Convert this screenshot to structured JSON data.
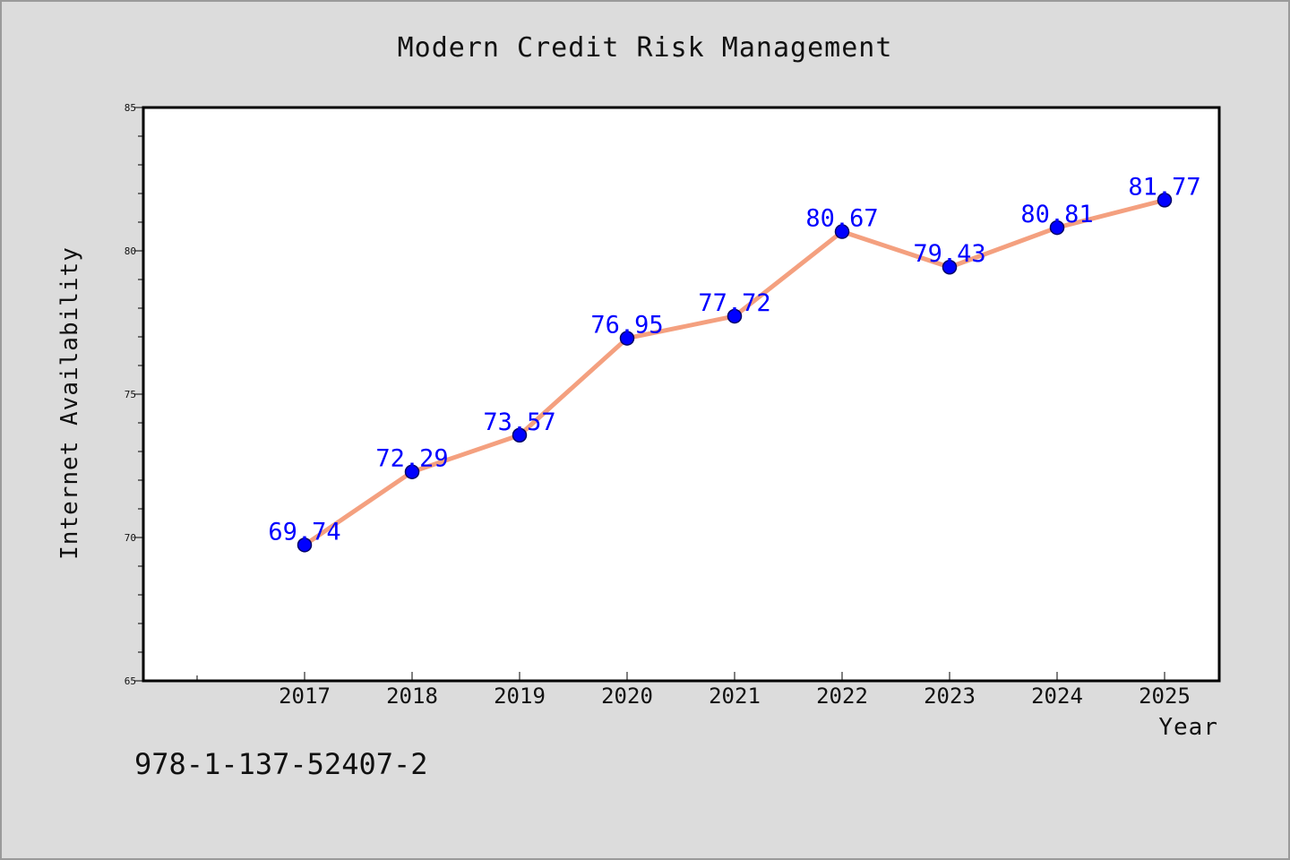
{
  "chart_data": {
    "type": "line",
    "title": "Modern Credit Risk Management",
    "xlabel": "Year",
    "ylabel": "Internet Availability",
    "categories": [
      "2017",
      "2018",
      "2019",
      "2020",
      "2021",
      "2022",
      "2023",
      "2024",
      "2025"
    ],
    "series": [
      {
        "values": [
          69.74,
          72.29,
          73.57,
          76.95,
          77.72,
          80.67,
          79.43,
          80.81,
          81.77
        ]
      }
    ],
    "data_labels": [
      "69.74",
      "72.29",
      "73.57",
      "76.95",
      "77.72",
      "80.67",
      "79.43",
      "80.81",
      "81.77"
    ],
    "ylim": [
      65,
      85
    ],
    "yticks": [
      "65",
      "70",
      "75",
      "80",
      "85"
    ],
    "grid": false,
    "colors": {
      "line": "#f4a07f",
      "marker_fill": "#0000ff",
      "marker_edge": "#000066",
      "data_label": "#0000ff",
      "background": "#dcdcdc",
      "plot_background": "#ffffff"
    }
  },
  "footer": {
    "isbn": "978-1-137-52407-2"
  }
}
